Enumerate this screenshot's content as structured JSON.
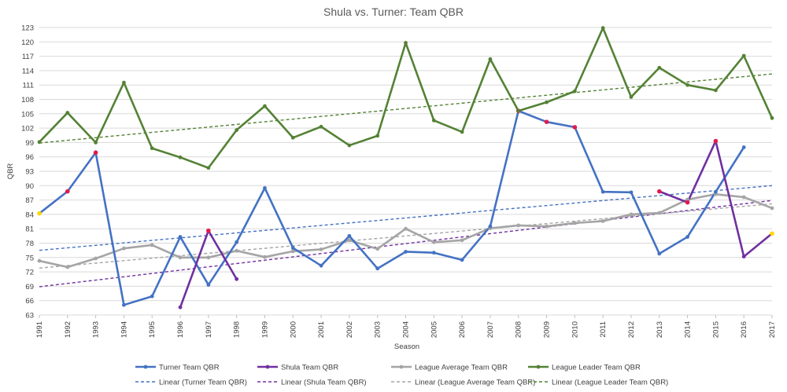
{
  "chart_data": {
    "type": "line",
    "title": "Shula vs. Turner: Team QBR",
    "xlabel": "Season",
    "ylabel": "QBR",
    "ylim": [
      63,
      123
    ],
    "yticks": [
      63,
      66,
      69,
      72,
      75,
      78,
      81,
      84,
      87,
      90,
      93,
      96,
      99,
      102,
      105,
      108,
      111,
      114,
      117,
      120,
      123
    ],
    "x": [
      1991,
      1992,
      1993,
      1994,
      1995,
      1996,
      1997,
      1998,
      1999,
      2000,
      2001,
      2002,
      2003,
      2004,
      2005,
      2006,
      2007,
      2008,
      2009,
      2010,
      2011,
      2012,
      2013,
      2014,
      2015,
      2016,
      2017
    ],
    "grid": "horizontal",
    "legend_position": "bottom",
    "series": [
      {
        "name": "Turner Team QBR",
        "color": "#4472c4",
        "values": [
          84.2,
          88.8,
          96.9,
          65.1,
          66.9,
          79.3,
          69.3,
          78.2,
          89.5,
          77.0,
          73.3,
          79.5,
          72.7,
          76.2,
          76.0,
          74.5,
          81.5,
          105.6,
          103.3,
          102.2,
          88.7,
          88.6,
          75.8,
          79.3,
          88.7,
          98.0,
          null
        ],
        "highlight": {
          "1991": "#ffd700",
          "1992": "#e31a4c",
          "1993": "#e31a4c",
          "2008": "#e31a4c",
          "2009": "#e31a4c",
          "2010": "#e31a4c"
        }
      },
      {
        "name": "Shula Team QBR",
        "color": "#7030a0",
        "values": [
          null,
          null,
          null,
          null,
          null,
          64.6,
          80.6,
          70.5,
          null,
          null,
          null,
          null,
          null,
          null,
          null,
          null,
          null,
          null,
          null,
          null,
          null,
          null,
          88.8,
          86.5,
          99.3,
          75.2,
          80.0
        ],
        "highlight": {
          "1997": "#e31a4c",
          "1999": "#ffd700",
          "2013": "#e31a4c",
          "2014": "#e31a4c",
          "2015": "#e31a4c",
          "2017": "#ffd700"
        }
      },
      {
        "name": "League Average Team QBR",
        "color": "#a5a5a5",
        "values": [
          74.3,
          73.0,
          74.8,
          76.9,
          77.6,
          75.0,
          75.0,
          76.4,
          75.1,
          76.3,
          76.7,
          78.6,
          76.8,
          81.0,
          78.2,
          78.6,
          81.1,
          81.7,
          81.5,
          82.2,
          82.6,
          84.0,
          84.3,
          87.1,
          88.2,
          87.6,
          85.3
        ]
      },
      {
        "name": "League Leader Team QBR",
        "color": "#548235",
        "values": [
          99.1,
          105.2,
          99.0,
          111.5,
          97.8,
          95.9,
          93.7,
          101.6,
          106.6,
          100.0,
          102.3,
          98.4,
          100.4,
          119.8,
          103.6,
          101.2,
          116.4,
          105.6,
          107.4,
          109.7,
          122.9,
          108.5,
          114.6,
          111.0,
          109.9,
          117.1,
          104.1
        ]
      }
    ],
    "trendlines": [
      {
        "name": "Linear (Turner Team QBR)",
        "color": "#4472c4",
        "start": 76.5,
        "end": 90.0
      },
      {
        "name": "Linear (Shula Team QBR)",
        "color": "#7030a0",
        "start": 68.9,
        "end": 86.9
      },
      {
        "name": "Linear (League Average Team QBR)",
        "color": "#a5a5a5",
        "start": 72.8,
        "end": 86.2
      },
      {
        "name": "Linear (League Leader Team QBR)",
        "color": "#548235",
        "start": 98.9,
        "end": 113.3
      }
    ]
  }
}
